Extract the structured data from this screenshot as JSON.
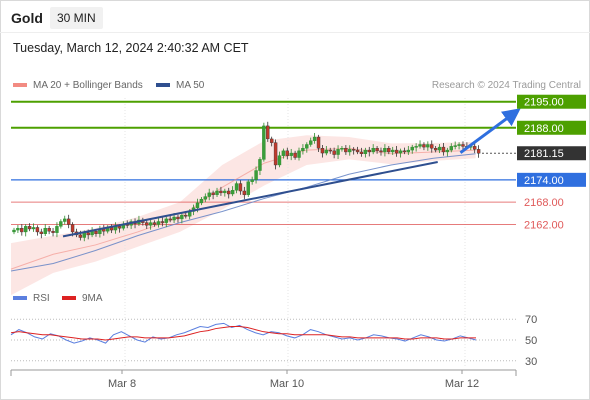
{
  "header": {
    "symbol": "Gold",
    "timeframe": "30 MIN",
    "datetime": "Tuesday, March 12, 2024 2:40:32 AM CET",
    "credit": "Research © 2024 Trading Central"
  },
  "colors": {
    "bollinger": "#f28b82",
    "ma50": "#2f4f8f",
    "resistance": "#4da000",
    "current": "#333333",
    "pivot": "#2f6fdf",
    "support": "#e05a5a",
    "rsi": "#5b7fdf",
    "rsi_ma": "#dd2222"
  },
  "legend": {
    "bollinger_label": "MA 20 + Bollinger Bands",
    "ma50_label": "MA 50",
    "rsi_label": "RSI",
    "rsi_ma_label": "9MA"
  },
  "chart_data": [
    {
      "type": "line",
      "title": "Gold 30 MIN",
      "x_ticks": [
        "Mar 8",
        "Mar 10",
        "Mar 12"
      ],
      "price_levels": [
        {
          "value": 2195.0,
          "label": "2195.00",
          "kind": "resistance"
        },
        {
          "value": 2188.0,
          "label": "2188.00",
          "kind": "resistance"
        },
        {
          "value": 2181.15,
          "label": "2181.15",
          "kind": "current"
        },
        {
          "value": 2174.0,
          "label": "2174.00",
          "kind": "pivot"
        },
        {
          "value": 2168.0,
          "label": "2168.00",
          "kind": "support"
        },
        {
          "value": 2162.0,
          "label": "2162.00",
          "kind": "support"
        }
      ],
      "ylim": [
        2146,
        2196
      ],
      "series": [
        {
          "name": "MA 50",
          "values": [
            2149.5,
            2151.5,
            2155.0,
            2159.0,
            2162.5,
            2165.5,
            2169.0,
            2172.0,
            2175.5,
            2178.0,
            2179.8,
            2181.0
          ]
        },
        {
          "name": "MA 20 + Bollinger Bands",
          "values": [
            2150.0,
            2154.0,
            2156.5,
            2160.0,
            2164.0,
            2172.0,
            2178.5,
            2182.0,
            2182.5,
            2181.0,
            2181.5,
            2182.0
          ]
        }
      ],
      "candle_closes": [
        2160.5,
        2161,
        2160,
        2161.5,
        2160.8,
        2161.2,
        2160,
        2159.5,
        2161,
        2160.2,
        2159.8,
        2161.5,
        2162.8,
        2163.5,
        2162,
        2160,
        2159.2,
        2158.5,
        2159.8,
        2159.2,
        2160.2,
        2159.5,
        2160.8,
        2160.2,
        2161.2,
        2160.5,
        2161.5,
        2161,
        2162,
        2161.8,
        2162.8,
        2162.2,
        2163.2,
        2162.5,
        2161.8,
        2162.5,
        2162,
        2162.8,
        2162.5,
        2163.5,
        2163.2,
        2164,
        2163.5,
        2164.5,
        2164.2,
        2165.5,
        2166.5,
        2167.8,
        2168.8,
        2169.5,
        2170.5,
        2170,
        2171,
        2170.5,
        2171,
        2170.2,
        2171.2,
        2173,
        2171,
        2170,
        2173.5,
        2174,
        2176.5,
        2179.5,
        2188.5,
        2185,
        2184,
        2178,
        2180.5,
        2181.8,
        2180.5,
        2181.2,
        2180,
        2181.8,
        2182.5,
        2183.5,
        2184.5,
        2185.5,
        2182.5,
        2181.2,
        2182,
        2181.8,
        2180.8,
        2182.2,
        2182.5,
        2181.5,
        2182.2,
        2182,
        2181.5,
        2181,
        2182,
        2181.5,
        2182.5,
        2181.8,
        2181.5,
        2182.5,
        2181.5,
        2182,
        2181.2,
        2181.8,
        2181.5,
        2182,
        2182.8,
        2183,
        2183.5,
        2182.8,
        2183.5,
        2182.5,
        2182,
        2182.8,
        2181.5,
        2182,
        2183,
        2183.2,
        2183.5,
        2183,
        2182.8,
        2183,
        2182.2,
        2181.15
      ],
      "trendlines": [
        {
          "from": [
            0,
            2158.8
          ],
          "to": [
            0.845,
            2178.8
          ],
          "color": "#2f4f8f"
        },
        {
          "from": [
            0.89,
            2181.3
          ],
          "to": [
            0.995,
            2191.8
          ],
          "color": "#2f6fdf",
          "arrow": true
        }
      ]
    },
    {
      "type": "line",
      "title": "RSI",
      "ylim": [
        25,
        75
      ],
      "y_ticks": [
        70,
        50,
        30
      ],
      "series": [
        {
          "name": "RSI",
          "values": [
            55,
            60,
            57,
            53,
            51,
            56,
            54,
            50,
            47,
            49,
            52,
            50,
            47,
            55,
            58,
            54,
            50,
            48,
            53,
            51,
            52,
            55,
            57,
            60,
            63,
            62,
            65,
            66,
            62,
            64,
            60,
            57,
            55,
            58,
            57,
            54,
            52,
            55,
            60,
            58,
            55,
            53,
            51,
            52,
            50,
            52,
            55,
            54,
            52,
            51,
            49,
            52,
            55,
            53,
            50,
            49,
            51,
            54,
            52,
            50
          ]
        },
        {
          "name": "9MA",
          "values": [
            57,
            58,
            57,
            56,
            55,
            55,
            54,
            53,
            52,
            51,
            51,
            51,
            50,
            51,
            52,
            53,
            53,
            52,
            52,
            52,
            52,
            53,
            54,
            56,
            58,
            59,
            61,
            62,
            63,
            63,
            62,
            60,
            58,
            57,
            56,
            56,
            55,
            55,
            55,
            55,
            55,
            54,
            53,
            53,
            52,
            52,
            52,
            52,
            52,
            52,
            51,
            51,
            52,
            52,
            52,
            51,
            51,
            52,
            52,
            52
          ]
        }
      ]
    }
  ]
}
